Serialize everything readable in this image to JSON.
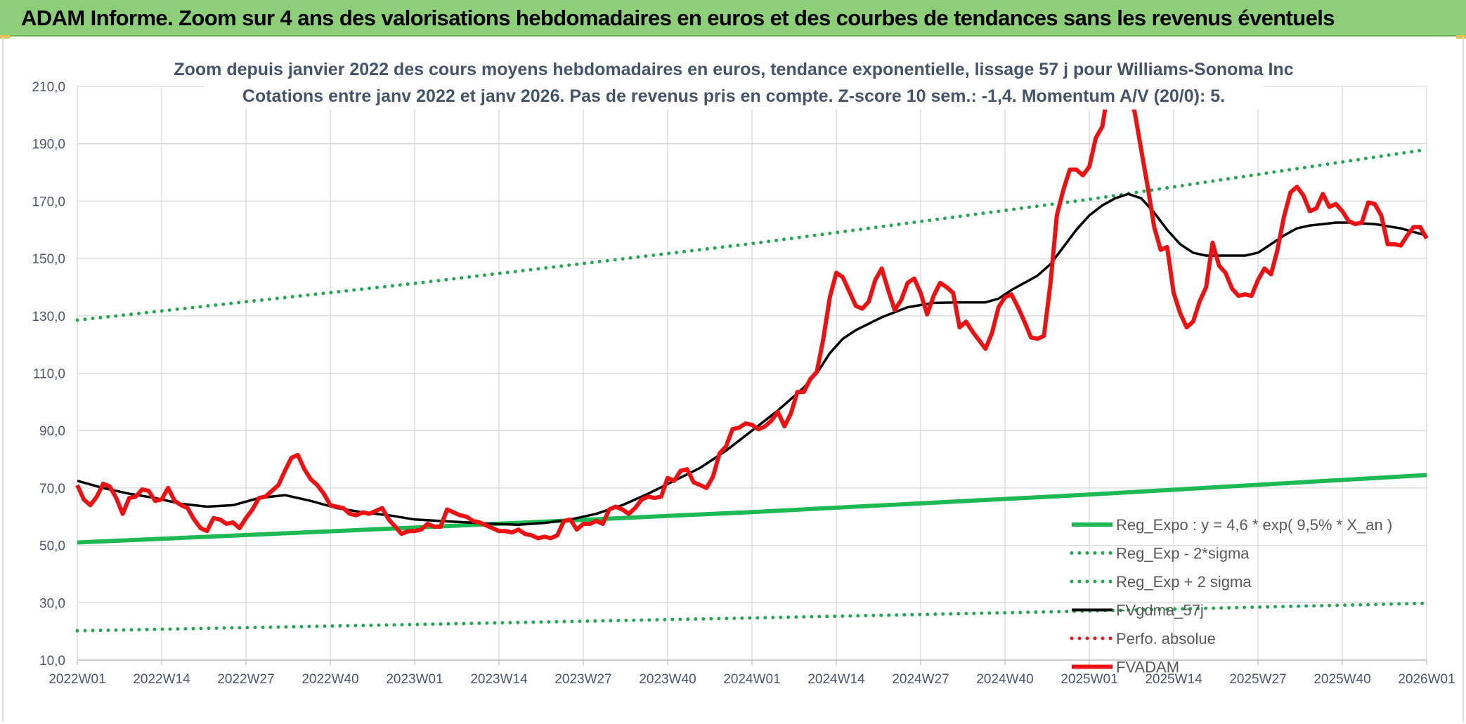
{
  "header": {
    "title": "ADAM Informe. Zoom sur 4 ans des valorisations hebdomadaires en euros et des courbes de tendances sans les revenus éventuels"
  },
  "colors": {
    "header_bg": "#8ccf78",
    "trend": "#1db954",
    "sigma": "#1fa84f",
    "smooth": "#000000",
    "price": "#ee1111",
    "perfo": "#ee1111"
  },
  "chart_data": {
    "type": "line",
    "title": "Zoom depuis janvier 2022 des cours moyens hebdomadaires en euros, tendance exponentielle, lissage 57 j pour Williams-Sonoma Inc",
    "subtitle": "Cotations entre janv 2022 et janv 2026. Pas de revenus pris en compte. Z-score 10 sem.: -1,4. Momentum A/V (20/0): 5.",
    "xlabel": "",
    "ylabel": "",
    "ylim": [
      10,
      210
    ],
    "xlim": [
      0,
      208
    ],
    "grid": true,
    "legend_position": "bottom-right",
    "yticks": [
      "10,0",
      "30,0",
      "50,0",
      "70,0",
      "90,0",
      "110,0",
      "130,0",
      "150,0",
      "170,0",
      "190,0",
      "210,0"
    ],
    "xticks": [
      {
        "label": "2022W01",
        "week": 0
      },
      {
        "label": "2022W14",
        "week": 13
      },
      {
        "label": "2022W27",
        "week": 26
      },
      {
        "label": "2022W40",
        "week": 39
      },
      {
        "label": "2023W01",
        "week": 52
      },
      {
        "label": "2023W14",
        "week": 65
      },
      {
        "label": "2023W27",
        "week": 78
      },
      {
        "label": "2023W40",
        "week": 91
      },
      {
        "label": "2024W01",
        "week": 104
      },
      {
        "label": "2024W14",
        "week": 117
      },
      {
        "label": "2024W27",
        "week": 130
      },
      {
        "label": "2024W40",
        "week": 143
      },
      {
        "label": "2025W01",
        "week": 156
      },
      {
        "label": "2025W14",
        "week": 169
      },
      {
        "label": "2025W27",
        "week": 182
      },
      {
        "label": "2025W40",
        "week": 195
      },
      {
        "label": "2026W01",
        "week": 208
      }
    ],
    "series": [
      {
        "name": "Reg_Expo : y = 4,6 * exp( 9,5% * X_an )",
        "style": "solid-thick",
        "color": "#1db954",
        "points": [
          [
            0,
            51
          ],
          [
            52,
            56.2
          ],
          [
            104,
            61.6
          ],
          [
            156,
            67.7
          ],
          [
            208,
            74.5
          ]
        ]
      },
      {
        "name": "Reg_Exp - 2*sigma",
        "style": "dotted",
        "color": "#1fa84f",
        "points": [
          [
            0,
            20.2
          ],
          [
            52,
            22.4
          ],
          [
            104,
            24.7
          ],
          [
            156,
            27.1
          ],
          [
            208,
            29.8
          ]
        ]
      },
      {
        "name": "Reg_Exp + 2 sigma",
        "style": "dotted",
        "color": "#1fa84f",
        "points": [
          [
            0,
            128.5
          ],
          [
            52,
            141.3
          ],
          [
            104,
            155.2
          ],
          [
            156,
            170.6
          ],
          [
            208,
            188
          ]
        ]
      },
      {
        "name": "FVgdma_57j",
        "style": "solid",
        "color": "#000000",
        "points": [
          [
            0,
            72.5
          ],
          [
            4,
            70
          ],
          [
            8,
            68
          ],
          [
            12,
            66.5
          ],
          [
            16,
            64.5
          ],
          [
            20,
            63.5
          ],
          [
            24,
            64
          ],
          [
            28,
            66.5
          ],
          [
            32,
            67.5
          ],
          [
            36,
            65.5
          ],
          [
            40,
            63
          ],
          [
            44,
            61.5
          ],
          [
            48,
            60.5
          ],
          [
            52,
            59
          ],
          [
            56,
            58.5
          ],
          [
            60,
            58
          ],
          [
            64,
            57.5
          ],
          [
            68,
            57.2
          ],
          [
            72,
            57.8
          ],
          [
            76,
            59
          ],
          [
            80,
            61
          ],
          [
            84,
            64
          ],
          [
            88,
            68
          ],
          [
            92,
            72.5
          ],
          [
            96,
            77
          ],
          [
            100,
            83
          ],
          [
            104,
            90
          ],
          [
            108,
            97
          ],
          [
            112,
            105
          ],
          [
            114,
            110
          ],
          [
            116,
            117
          ],
          [
            118,
            122
          ],
          [
            120,
            125
          ],
          [
            124,
            129.5
          ],
          [
            128,
            133
          ],
          [
            132,
            134.5
          ],
          [
            136,
            134.7
          ],
          [
            140,
            134.7
          ],
          [
            142,
            136
          ],
          [
            144,
            139
          ],
          [
            148,
            144
          ],
          [
            150,
            148
          ],
          [
            152,
            154
          ],
          [
            154,
            160
          ],
          [
            156,
            165
          ],
          [
            158,
            168.5
          ],
          [
            160,
            171
          ],
          [
            162,
            172.5
          ],
          [
            164,
            171
          ],
          [
            166,
            166
          ],
          [
            168,
            160
          ],
          [
            170,
            155
          ],
          [
            172,
            152
          ],
          [
            174,
            151
          ],
          [
            176,
            151
          ],
          [
            178,
            151
          ],
          [
            180,
            151
          ],
          [
            182,
            152
          ],
          [
            184,
            155
          ],
          [
            186,
            158
          ],
          [
            188,
            160.5
          ],
          [
            190,
            161.5
          ],
          [
            192,
            162
          ],
          [
            194,
            162.5
          ],
          [
            196,
            162.5
          ],
          [
            200,
            162
          ],
          [
            204,
            160.5
          ],
          [
            208,
            158
          ]
        ]
      },
      {
        "name": "Perfo. absolue",
        "style": "dotted",
        "color": "#ee1111",
        "points": []
      },
      {
        "name": "FVADAM",
        "style": "solid-thick",
        "color": "#ee1111",
        "points": [
          [
            0,
            71
          ],
          [
            1,
            66
          ],
          [
            2,
            64
          ],
          [
            3,
            67
          ],
          [
            4,
            71.5
          ],
          [
            5,
            70.5
          ],
          [
            6,
            66.5
          ],
          [
            7,
            61
          ],
          [
            8,
            66.5
          ],
          [
            9,
            67
          ],
          [
            10,
            69.5
          ],
          [
            11,
            69
          ],
          [
            12,
            65.5
          ],
          [
            13,
            66
          ],
          [
            14,
            70
          ],
          [
            15,
            65.5
          ],
          [
            16,
            64
          ],
          [
            17,
            63
          ],
          [
            18,
            59
          ],
          [
            19,
            56
          ],
          [
            20,
            55
          ],
          [
            21,
            59.5
          ],
          [
            22,
            59
          ],
          [
            23,
            57.5
          ],
          [
            24,
            58
          ],
          [
            25,
            56
          ],
          [
            26,
            59.5
          ],
          [
            27,
            62.5
          ],
          [
            28,
            66.5
          ],
          [
            29,
            67
          ],
          [
            30,
            69
          ],
          [
            31,
            71
          ],
          [
            32,
            76
          ],
          [
            33,
            80.5
          ],
          [
            34,
            81.5
          ],
          [
            35,
            76.5
          ],
          [
            36,
            73
          ],
          [
            37,
            71
          ],
          [
            38,
            68
          ],
          [
            39,
            64
          ],
          [
            40,
            63.5
          ],
          [
            41,
            63
          ],
          [
            42,
            61
          ],
          [
            43,
            60.5
          ],
          [
            44,
            61.5
          ],
          [
            45,
            61
          ],
          [
            46,
            62
          ],
          [
            47,
            63
          ],
          [
            48,
            59
          ],
          [
            49,
            56.5
          ],
          [
            50,
            54
          ],
          [
            51,
            55
          ],
          [
            52,
            55
          ],
          [
            53,
            55.5
          ],
          [
            54,
            57.5
          ],
          [
            55,
            56.5
          ],
          [
            56,
            56.5
          ],
          [
            57,
            62.5
          ],
          [
            58,
            61.5
          ],
          [
            59,
            60.5
          ],
          [
            60,
            60
          ],
          [
            61,
            58.5
          ],
          [
            62,
            58
          ],
          [
            63,
            57
          ],
          [
            64,
            56
          ],
          [
            65,
            55
          ],
          [
            66,
            55
          ],
          [
            67,
            54.5
          ],
          [
            68,
            55.5
          ],
          [
            69,
            54
          ],
          [
            70,
            53.5
          ],
          [
            71,
            52.5
          ],
          [
            72,
            53
          ],
          [
            73,
            52.5
          ],
          [
            74,
            53.5
          ],
          [
            75,
            58.5
          ],
          [
            76,
            59
          ],
          [
            77,
            55.5
          ],
          [
            78,
            57.5
          ],
          [
            79,
            57.5
          ],
          [
            80,
            58.5
          ],
          [
            81,
            57.5
          ],
          [
            82,
            62.5
          ],
          [
            83,
            63.5
          ],
          [
            84,
            62.5
          ],
          [
            85,
            61
          ],
          [
            86,
            63
          ],
          [
            87,
            66
          ],
          [
            88,
            67
          ],
          [
            89,
            66.5
          ],
          [
            90,
            67
          ],
          [
            91,
            73.5
          ],
          [
            92,
            72.5
          ],
          [
            93,
            76
          ],
          [
            94,
            76.5
          ],
          [
            95,
            72
          ],
          [
            96,
            71
          ],
          [
            97,
            70
          ],
          [
            98,
            74
          ],
          [
            99,
            82
          ],
          [
            100,
            84.5
          ],
          [
            101,
            90.5
          ],
          [
            102,
            91
          ],
          [
            103,
            92.5
          ],
          [
            104,
            92
          ],
          [
            105,
            90.5
          ],
          [
            106,
            91.5
          ],
          [
            107,
            93.5
          ],
          [
            108,
            96.5
          ],
          [
            109,
            91.5
          ],
          [
            110,
            96
          ],
          [
            111,
            103.5
          ],
          [
            112,
            103.5
          ],
          [
            113,
            108
          ],
          [
            114,
            110.5
          ],
          [
            115,
            122
          ],
          [
            116,
            136.5
          ],
          [
            117,
            145
          ],
          [
            118,
            143.5
          ],
          [
            119,
            138.5
          ],
          [
            120,
            133.5
          ],
          [
            121,
            132.5
          ],
          [
            122,
            135
          ],
          [
            123,
            142.5
          ],
          [
            124,
            146.5
          ],
          [
            125,
            139
          ],
          [
            126,
            132
          ],
          [
            127,
            135.5
          ],
          [
            128,
            141.5
          ],
          [
            129,
            143
          ],
          [
            130,
            138
          ],
          [
            131,
            130.5
          ],
          [
            132,
            137
          ],
          [
            133,
            141.5
          ],
          [
            134,
            140
          ],
          [
            135,
            138
          ],
          [
            136,
            126
          ],
          [
            137,
            128
          ],
          [
            138,
            124.5
          ],
          [
            139,
            121.5
          ],
          [
            140,
            118.5
          ],
          [
            141,
            124
          ],
          [
            142,
            133
          ],
          [
            143,
            136.5
          ],
          [
            144,
            137.5
          ],
          [
            145,
            133
          ],
          [
            146,
            128
          ],
          [
            147,
            122.5
          ],
          [
            148,
            122
          ],
          [
            149,
            123
          ],
          [
            150,
            141
          ],
          [
            151,
            165
          ],
          [
            152,
            174
          ],
          [
            153,
            181
          ],
          [
            154,
            181
          ],
          [
            155,
            179
          ],
          [
            156,
            182
          ],
          [
            157,
            192
          ],
          [
            158,
            196
          ],
          [
            159,
            210
          ],
          [
            160,
            213
          ],
          [
            161,
            210
          ],
          [
            162,
            208
          ],
          [
            163,
            201
          ],
          [
            164,
            188
          ],
          [
            165,
            175
          ],
          [
            166,
            161
          ],
          [
            167,
            153
          ],
          [
            168,
            154
          ],
          [
            169,
            138
          ],
          [
            170,
            131
          ],
          [
            171,
            126
          ],
          [
            172,
            128
          ],
          [
            173,
            135
          ],
          [
            174,
            140
          ],
          [
            175,
            155.5
          ],
          [
            176,
            147.5
          ],
          [
            177,
            145
          ],
          [
            178,
            139.5
          ],
          [
            179,
            137
          ],
          [
            180,
            137.5
          ],
          [
            181,
            137
          ],
          [
            182,
            142.5
          ],
          [
            183,
            146.5
          ],
          [
            184,
            144.5
          ],
          [
            185,
            153
          ],
          [
            186,
            164.5
          ],
          [
            187,
            173
          ],
          [
            188,
            175
          ],
          [
            189,
            172
          ],
          [
            190,
            166.5
          ],
          [
            191,
            167.5
          ],
          [
            192,
            172.5
          ],
          [
            193,
            168
          ],
          [
            194,
            169
          ],
          [
            195,
            166.5
          ],
          [
            196,
            163
          ],
          [
            197,
            162
          ],
          [
            198,
            162.5
          ],
          [
            199,
            169.5
          ],
          [
            200,
            169
          ],
          [
            201,
            165
          ],
          [
            202,
            155
          ],
          [
            203,
            155
          ],
          [
            204,
            154.5
          ],
          [
            205,
            158
          ],
          [
            206,
            161
          ],
          [
            207,
            161
          ],
          [
            208,
            157
          ]
        ]
      }
    ]
  }
}
